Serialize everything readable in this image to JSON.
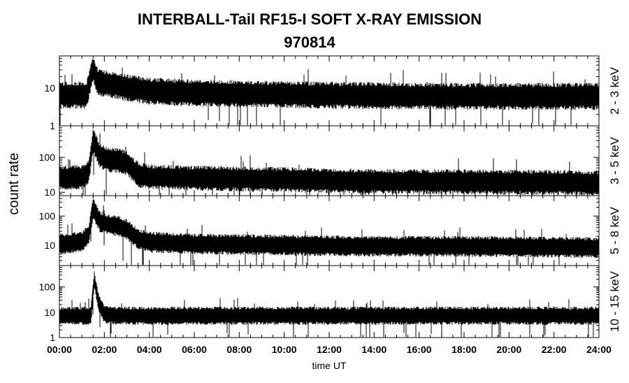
{
  "chart_data": {
    "type": "line",
    "title": "INTERBALL-Tail RF15-I SOFT X-RAY EMISSION",
    "subtitle": "970814",
    "xlabel": "time UT",
    "ylabel": "count rate",
    "x_unit": "hours UT",
    "xlim": [
      0,
      24
    ],
    "x_ticks": [
      0,
      2,
      4,
      6,
      8,
      10,
      12,
      14,
      16,
      18,
      20,
      22,
      24
    ],
    "x_tick_labels": [
      "00:00",
      "02:00",
      "04:00",
      "06:00",
      "08:00",
      "10:00",
      "12:00",
      "14:00",
      "16:00",
      "18:00",
      "20:00",
      "22:00",
      "24:00"
    ],
    "yscale": "log",
    "grid": false,
    "panels": [
      {
        "band_label": "2 - 3 keV",
        "ylim": [
          1,
          70
        ],
        "y_ticks": [
          1,
          10
        ],
        "y_tick_labels": [
          "1",
          "10"
        ],
        "trend": {
          "x": [
            0,
            1.2,
            1.5,
            1.7,
            2.0,
            2.5,
            3.0,
            4.0,
            6.0,
            12.0,
            18.0,
            24.0
          ],
          "y": [
            7,
            7,
            35,
            16,
            14,
            13,
            11,
            9,
            8,
            7,
            6.5,
            6.5
          ]
        }
      },
      {
        "band_label": "3 - 5 keV",
        "ylim": [
          8,
          800
        ],
        "y_ticks": [
          10,
          100
        ],
        "y_tick_labels": [
          "10",
          "100"
        ],
        "trend": {
          "x": [
            0,
            1.0,
            1.3,
            1.5,
            1.8,
            2.2,
            2.6,
            3.0,
            3.5,
            4.0,
            6.0,
            10.0,
            14.0,
            18.0,
            24.0
          ],
          "y": [
            28,
            30,
            40,
            350,
            120,
            90,
            90,
            75,
            35,
            30,
            28,
            25,
            22,
            22,
            20
          ]
        }
      },
      {
        "band_label": "5 - 8 keV",
        "ylim": [
          2,
          500
        ],
        "y_ticks": [
          10,
          100
        ],
        "y_tick_labels": [
          "10",
          "100"
        ],
        "trend": {
          "x": [
            0,
            1.0,
            1.3,
            1.5,
            1.8,
            2.2,
            2.6,
            3.0,
            3.5,
            4.0,
            6.0,
            10.0,
            14.0,
            18.0,
            24.0
          ],
          "y": [
            12,
            14,
            25,
            200,
            70,
            55,
            50,
            38,
            18,
            14,
            12,
            11,
            10,
            10,
            9
          ]
        }
      },
      {
        "band_label": "10 - 15 keV",
        "ylim": [
          1,
          700
        ],
        "y_ticks": [
          1,
          10,
          100
        ],
        "y_tick_labels": [
          "1",
          "10",
          "100"
        ],
        "trend": {
          "x": [
            0,
            1.4,
            1.55,
            1.75,
            2.0,
            2.5,
            24.0
          ],
          "y": [
            8,
            8,
            220,
            25,
            9,
            8,
            8
          ]
        }
      }
    ]
  }
}
